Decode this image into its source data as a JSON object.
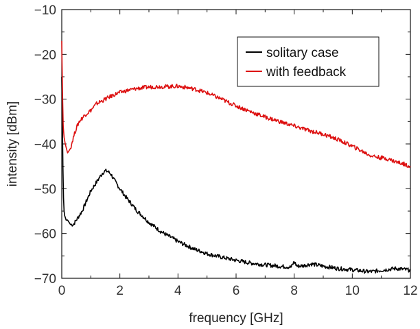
{
  "chart_data": {
    "type": "line",
    "title": "",
    "xlabel": "frequency [GHz]",
    "ylabel": "intensity [dBm]",
    "xlim": [
      0,
      12
    ],
    "ylim": [
      -70,
      -10
    ],
    "xticks": [
      0,
      2,
      4,
      6,
      8,
      10,
      12
    ],
    "yticks": [
      -70,
      -60,
      -50,
      -40,
      -30,
      -20,
      -10
    ],
    "grid": false,
    "legend_position": "top-right",
    "series": [
      {
        "name": "solitary case",
        "color": "#000000",
        "x": [
          0.0,
          0.02,
          0.04,
          0.06,
          0.08,
          0.1,
          0.15,
          0.2,
          0.3,
          0.4,
          0.5,
          0.6,
          0.7,
          0.8,
          0.9,
          1.0,
          1.1,
          1.2,
          1.3,
          1.4,
          1.5,
          1.6,
          1.7,
          1.8,
          1.9,
          2.0,
          2.2,
          2.4,
          2.6,
          2.8,
          3.0,
          3.2,
          3.4,
          3.6,
          3.8,
          4.0,
          4.2,
          4.4,
          4.6,
          4.8,
          5.0,
          5.5,
          6.0,
          6.5,
          7.0,
          7.5,
          7.9,
          8.0,
          8.1,
          8.3,
          8.6,
          9.0,
          9.5,
          10.0,
          10.5,
          10.7,
          11.0,
          11.5,
          12.0
        ],
        "values": [
          -25,
          -34,
          -45,
          -52,
          -55,
          -56,
          -57,
          -57,
          -58,
          -58,
          -57,
          -56,
          -55,
          -53.5,
          -52,
          -50.5,
          -49.5,
          -48.5,
          -47.5,
          -46.5,
          -46,
          -46.2,
          -46.8,
          -48,
          -49,
          -50,
          -51.8,
          -53.4,
          -55,
          -56.2,
          -57.5,
          -58.5,
          -59.5,
          -60.3,
          -61,
          -61.8,
          -62.4,
          -63,
          -63.6,
          -64,
          -64.5,
          -65.3,
          -66,
          -66.6,
          -67,
          -67.3,
          -67.5,
          -66.3,
          -67.3,
          -67.2,
          -66.8,
          -67.3,
          -67.8,
          -68.1,
          -68.5,
          -68.5,
          -68.2,
          -67.8,
          -68.2
        ]
      },
      {
        "name": "with feedback",
        "color": "#dd1111",
        "x": [
          0.0,
          0.01,
          0.03,
          0.05,
          0.08,
          0.12,
          0.16,
          0.2,
          0.25,
          0.3,
          0.4,
          0.5,
          0.6,
          0.8,
          1.0,
          1.2,
          1.5,
          1.8,
          2.0,
          2.3,
          2.6,
          3.0,
          3.3,
          3.6,
          4.0,
          4.3,
          4.6,
          5.0,
          5.5,
          6.0,
          6.5,
          7.0,
          7.5,
          8.0,
          8.5,
          9.0,
          9.5,
          10.0,
          10.3,
          10.6,
          10.9,
          11.2,
          11.5,
          11.8,
          12.0
        ],
        "values": [
          -17,
          -22,
          -30,
          -36,
          -38.5,
          -40,
          -41,
          -42,
          -41.5,
          -41,
          -38.5,
          -36.5,
          -35,
          -33.5,
          -32.5,
          -31,
          -30,
          -29,
          -28.5,
          -28,
          -27.6,
          -27.3,
          -27.2,
          -27.2,
          -27.1,
          -27.4,
          -27.8,
          -28.6,
          -30,
          -31.5,
          -32.8,
          -34,
          -35,
          -36,
          -37,
          -37.8,
          -39,
          -40.5,
          -41.5,
          -42.5,
          -43,
          -43.3,
          -44,
          -44.5,
          -45
        ]
      }
    ]
  }
}
